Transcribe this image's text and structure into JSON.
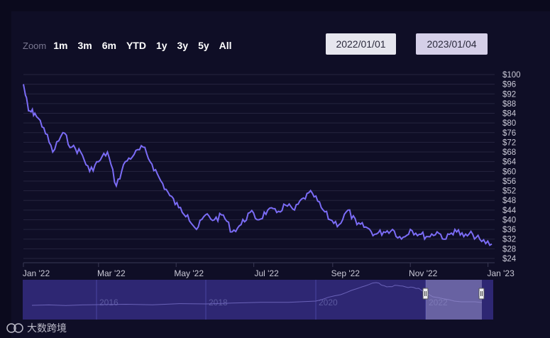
{
  "zoom": {
    "label": "Zoom",
    "buttons": [
      "1m",
      "3m",
      "6m",
      "YTD",
      "1y",
      "3y",
      "5y",
      "All"
    ]
  },
  "range": {
    "from": "2022/01/01",
    "to": "2023/01/04"
  },
  "chart_data": {
    "type": "line",
    "x": [
      "2022-01-01",
      "2022-01-05",
      "2022-01-10",
      "2022-01-17",
      "2022-01-24",
      "2022-02-01",
      "2022-02-08",
      "2022-02-15",
      "2022-02-22",
      "2022-03-01",
      "2022-03-08",
      "2022-03-15",
      "2022-03-22",
      "2022-03-29",
      "2022-04-05",
      "2022-04-12",
      "2022-04-19",
      "2022-04-26",
      "2022-05-03",
      "2022-05-10",
      "2022-05-17",
      "2022-05-24",
      "2022-05-31",
      "2022-06-07",
      "2022-06-14",
      "2022-06-21",
      "2022-06-28",
      "2022-07-05",
      "2022-07-12",
      "2022-07-19",
      "2022-07-26",
      "2022-08-02",
      "2022-08-09",
      "2022-08-16",
      "2022-08-23",
      "2022-08-30",
      "2022-09-06",
      "2022-09-13",
      "2022-09-20",
      "2022-09-27",
      "2022-10-04",
      "2022-10-11",
      "2022-10-18",
      "2022-10-25",
      "2022-11-01",
      "2022-11-08",
      "2022-11-15",
      "2022-11-22",
      "2022-11-29",
      "2022-12-06",
      "2022-12-13",
      "2022-12-20",
      "2022-12-27",
      "2023-01-04"
    ],
    "y": [
      96,
      85,
      84,
      78,
      68,
      76,
      70,
      68,
      60,
      64,
      68,
      54,
      64,
      67,
      70,
      63,
      56,
      50,
      45,
      42,
      36,
      42,
      40,
      42,
      35,
      38,
      43,
      40,
      44,
      43,
      46,
      44,
      49,
      51,
      45,
      40,
      38,
      44,
      38,
      37,
      34,
      35,
      36,
      32,
      36,
      34,
      33,
      35,
      32,
      36,
      33,
      34,
      31,
      30
    ],
    "ylim": [
      24,
      100
    ],
    "y_ticks": [
      "$100",
      "$96",
      "$92",
      "$88",
      "$84",
      "$80",
      "$76",
      "$72",
      "$68",
      "$64",
      "$60",
      "$56",
      "$52",
      "$48",
      "$44",
      "$40",
      "$36",
      "$32",
      "$28",
      "$24"
    ],
    "x_ticks": [
      "Jan '22",
      "Mar '22",
      "May '22",
      "Jul '22",
      "Sep '22",
      "Nov '22",
      "Jan '23"
    ],
    "navigator_labels": [
      "2016",
      "2018",
      "2020",
      "2022"
    ],
    "line_color": "#7b6cf6",
    "grid": true
  },
  "watermark": "大数跨境"
}
